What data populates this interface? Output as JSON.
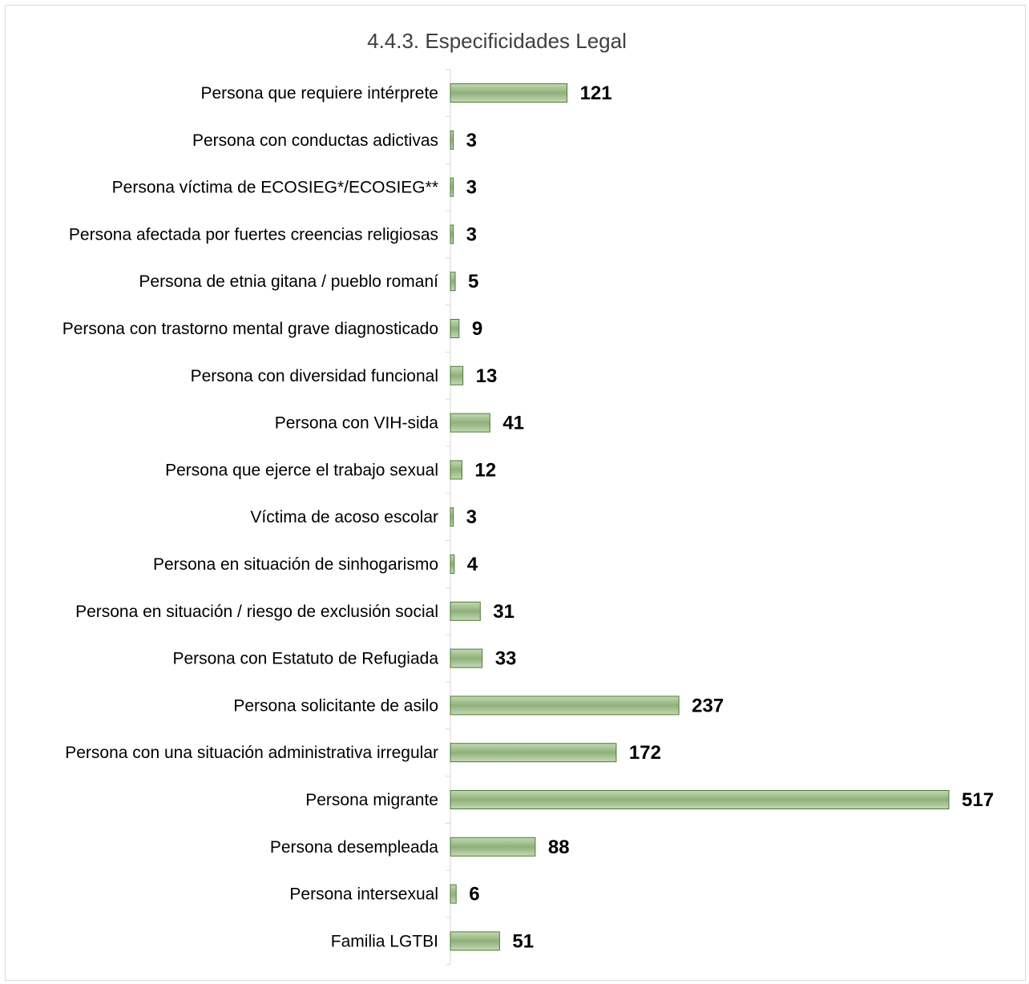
{
  "chart_data": {
    "type": "bar",
    "orientation": "horizontal",
    "title": "4.4.3. Especificidades Legal",
    "xlabel": "",
    "ylabel": "",
    "xlim": [
      0,
      520
    ],
    "grid": false,
    "legend": "none",
    "categories": [
      "Persona que requiere intérprete",
      "Persona con conductas adictivas",
      "Persona víctima de ECOSIEG*/ECOSIEG**",
      "Persona afectada por fuertes creencias religiosas",
      "Persona de etnia gitana / pueblo romaní",
      "Persona con trastorno mental grave diagnosticado",
      "Persona con diversidad funcional",
      "Persona con VIH-sida",
      "Persona que ejerce el trabajo sexual",
      "Víctima de acoso escolar",
      "Persona en situación de sinhogarismo",
      "Persona en situación / riesgo de exclusión social",
      "Persona con Estatuto de Refugiada",
      "Persona solicitante de asilo",
      "Persona con una situación administrativa irregular",
      "Persona migrante",
      "Persona desempleada",
      "Persona intersexual",
      "Familia LGTBI"
    ],
    "values": [
      121,
      3,
      3,
      3,
      5,
      9,
      13,
      41,
      12,
      3,
      4,
      31,
      33,
      237,
      172,
      517,
      88,
      6,
      51
    ],
    "colors": {
      "bar_fill_light": "#c3d9b4",
      "bar_fill_dark": "#8fb07a",
      "bar_stroke": "#4e7a34",
      "axis": "#d9d9d9",
      "border": "#d9d9d9"
    }
  }
}
